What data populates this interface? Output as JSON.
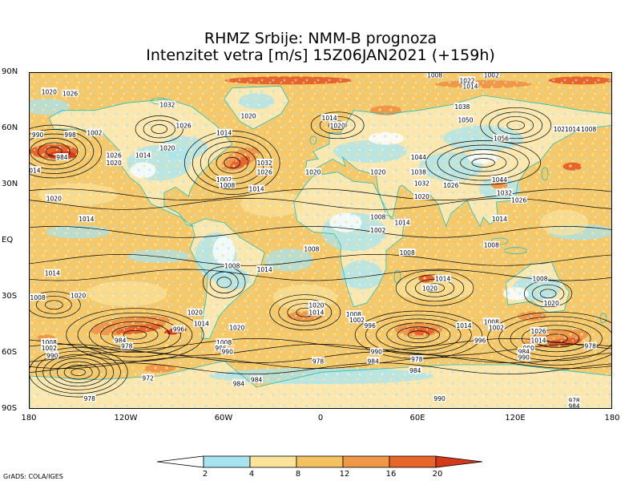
{
  "header": {
    "title_line1": "RHMZ Srbije: NMM-B prognoza",
    "title_line2": "Intenzitet vetra [m/s] 15Z06JAN2021 (+159h)"
  },
  "map": {
    "lat_labels": [
      "90N",
      "60N",
      "30N",
      "EQ",
      "30S",
      "60S",
      "90S"
    ],
    "lon_labels": [
      "180",
      "120W",
      "60W",
      "0",
      "60E",
      "120E",
      "180"
    ],
    "colors": {
      "ocean_base": "#f5c86a",
      "calm": "#ffffff",
      "light": "#a8e4f0",
      "moderate": "#fbe39a",
      "fresh": "#f5c060",
      "strong": "#f09848",
      "gale": "#e8652a",
      "storm": "#d43a1a",
      "coastline": "#20c0c0",
      "isobar": "#000000"
    },
    "isobar_labels": [
      {
        "text": "1020",
        "lon": -168,
        "lat": 80
      },
      {
        "text": "1026",
        "lon": -155,
        "lat": 79
      },
      {
        "text": "1032",
        "lon": -95,
        "lat": 73
      },
      {
        "text": "1020",
        "lon": -45,
        "lat": 67
      },
      {
        "text": "1014",
        "lon": 5,
        "lat": 66
      },
      {
        "text": "1020",
        "lon": 10,
        "lat": 62
      },
      {
        "text": "1014",
        "lon": -60,
        "lat": 58
      },
      {
        "text": "1026",
        "lon": -85,
        "lat": 62
      },
      {
        "text": "990",
        "lon": -175,
        "lat": 57
      },
      {
        "text": "998",
        "lon": -155,
        "lat": 57
      },
      {
        "text": "1002",
        "lon": -140,
        "lat": 58
      },
      {
        "text": "984",
        "lon": -160,
        "lat": 45
      },
      {
        "text": "1026",
        "lon": -128,
        "lat": 46
      },
      {
        "text": "1020",
        "lon": -128,
        "lat": 42
      },
      {
        "text": "1014",
        "lon": -110,
        "lat": 46
      },
      {
        "text": "1020",
        "lon": -95,
        "lat": 50
      },
      {
        "text": "1014",
        "lon": -178,
        "lat": 38
      },
      {
        "text": "1002",
        "lon": -60,
        "lat": 33
      },
      {
        "text": "1008",
        "lon": -58,
        "lat": 30
      },
      {
        "text": "1032",
        "lon": -35,
        "lat": 42
      },
      {
        "text": "1026",
        "lon": -35,
        "lat": 37
      },
      {
        "text": "1020",
        "lon": -5,
        "lat": 37
      },
      {
        "text": "1014",
        "lon": -40,
        "lat": 28
      },
      {
        "text": "1020",
        "lon": -165,
        "lat": 23
      },
      {
        "text": "1014",
        "lon": -145,
        "lat": 12
      },
      {
        "text": "1044",
        "lon": 60,
        "lat": 45
      },
      {
        "text": "1038",
        "lon": 60,
        "lat": 37
      },
      {
        "text": "1020",
        "lon": 35,
        "lat": 37
      },
      {
        "text": "1032",
        "lon": 62,
        "lat": 31
      },
      {
        "text": "1026",
        "lon": 80,
        "lat": 30
      },
      {
        "text": "1020",
        "lon": 62,
        "lat": 24
      },
      {
        "text": "1044",
        "lon": 110,
        "lat": 33
      },
      {
        "text": "1032",
        "lon": 113,
        "lat": 26
      },
      {
        "text": "1026",
        "lon": 122,
        "lat": 22
      },
      {
        "text": "1014",
        "lon": 50,
        "lat": 10
      },
      {
        "text": "1008",
        "lon": 35,
        "lat": 13
      },
      {
        "text": "1002",
        "lon": 35,
        "lat": 6
      },
      {
        "text": "1014",
        "lon": 110,
        "lat": 12
      },
      {
        "text": "1008",
        "lon": 105,
        "lat": -2
      },
      {
        "text": "1008",
        "lon": -6,
        "lat": -4
      },
      {
        "text": "1008",
        "lon": 53,
        "lat": -6
      },
      {
        "text": "1008",
        "lon": -55,
        "lat": -13
      },
      {
        "text": "1014",
        "lon": -35,
        "lat": -15
      },
      {
        "text": "1014",
        "lon": -166,
        "lat": -17
      },
      {
        "text": "1008",
        "lon": -175,
        "lat": -30
      },
      {
        "text": "1020",
        "lon": -150,
        "lat": -29
      },
      {
        "text": "1014",
        "lon": 75,
        "lat": -20
      },
      {
        "text": "1020",
        "lon": 67,
        "lat": -25
      },
      {
        "text": "1008",
        "lon": 135,
        "lat": -20
      },
      {
        "text": "1020",
        "lon": 142,
        "lat": -33
      },
      {
        "text": "1020",
        "lon": -3,
        "lat": -34
      },
      {
        "text": "1014",
        "lon": -3,
        "lat": -38
      },
      {
        "text": "1020",
        "lon": -78,
        "lat": -38
      },
      {
        "text": "1014",
        "lon": -74,
        "lat": -44
      },
      {
        "text": "1020",
        "lon": -52,
        "lat": -46
      },
      {
        "text": "1008",
        "lon": 20,
        "lat": -39
      },
      {
        "text": "1002",
        "lon": 22,
        "lat": -42
      },
      {
        "text": "996",
        "lon": 30,
        "lat": -45
      },
      {
        "text": "1014",
        "lon": 88,
        "lat": -45
      },
      {
        "text": "1008",
        "lon": 105,
        "lat": -43
      },
      {
        "text": "1002",
        "lon": 108,
        "lat": -46
      },
      {
        "text": "1026",
        "lon": 134,
        "lat": -48
      },
      {
        "text": "1014",
        "lon": 134,
        "lat": -53
      },
      {
        "text": "996",
        "lon": 98,
        "lat": -53
      },
      {
        "text": "990",
        "lon": 128,
        "lat": -57
      },
      {
        "text": "984",
        "lon": 125,
        "lat": -59
      },
      {
        "text": "990",
        "lon": 125,
        "lat": -62
      },
      {
        "text": "978",
        "lon": 166,
        "lat": -56
      },
      {
        "text": "996",
        "lon": -88,
        "lat": -47
      },
      {
        "text": "984",
        "lon": -124,
        "lat": -53
      },
      {
        "text": "978",
        "lon": -120,
        "lat": -56
      },
      {
        "text": "1008",
        "lon": -168,
        "lat": -54
      },
      {
        "text": "1002",
        "lon": -168,
        "lat": -57
      },
      {
        "text": "990",
        "lon": -166,
        "lat": -61
      },
      {
        "text": "1008",
        "lon": -60,
        "lat": -54
      },
      {
        "text": "996",
        "lon": -62,
        "lat": -57
      },
      {
        "text": "990",
        "lon": -58,
        "lat": -59
      },
      {
        "text": "990",
        "lon": 34,
        "lat": -59
      },
      {
        "text": "984",
        "lon": 32,
        "lat": -64
      },
      {
        "text": "978",
        "lon": -2,
        "lat": -64
      },
      {
        "text": "978",
        "lon": 59,
        "lat": -63
      },
      {
        "text": "984",
        "lon": 58,
        "lat": -69
      },
      {
        "text": "972",
        "lon": -107,
        "lat": -73
      },
      {
        "text": "984",
        "lon": -51,
        "lat": -76
      },
      {
        "text": "984",
        "lon": -40,
        "lat": -74
      },
      {
        "text": "990",
        "lon": 73,
        "lat": -84
      },
      {
        "text": "978",
        "lon": -143,
        "lat": -84
      },
      {
        "text": "978",
        "lon": 156,
        "lat": -85
      },
      {
        "text": "984",
        "lon": 156,
        "lat": -88
      },
      {
        "text": "1038",
        "lon": 87,
        "lat": 72
      },
      {
        "text": "1050",
        "lon": 89,
        "lat": 65
      },
      {
        "text": "1056",
        "lon": 111,
        "lat": 55
      },
      {
        "text": "1020",
        "lon": 148,
        "lat": 60
      },
      {
        "text": "1014",
        "lon": 155,
        "lat": 60
      },
      {
        "text": "1008",
        "lon": 165,
        "lat": 60
      },
      {
        "text": "1014",
        "lon": 92,
        "lat": 83
      },
      {
        "text": "1022",
        "lon": 90,
        "lat": 86
      },
      {
        "text": "1002",
        "lon": 105,
        "lat": 89
      },
      {
        "text": "1008",
        "lon": 70,
        "lat": 89
      }
    ]
  },
  "colorbar": {
    "tick_labels": [
      "2",
      "4",
      "8",
      "12",
      "16",
      "20"
    ],
    "colors": [
      "#ffffff",
      "#a8e4f0",
      "#fbe39a",
      "#f5c060",
      "#f09848",
      "#e8652a",
      "#d43a1a"
    ]
  },
  "footer": {
    "credit": "GrADS: COLA/IGES"
  }
}
